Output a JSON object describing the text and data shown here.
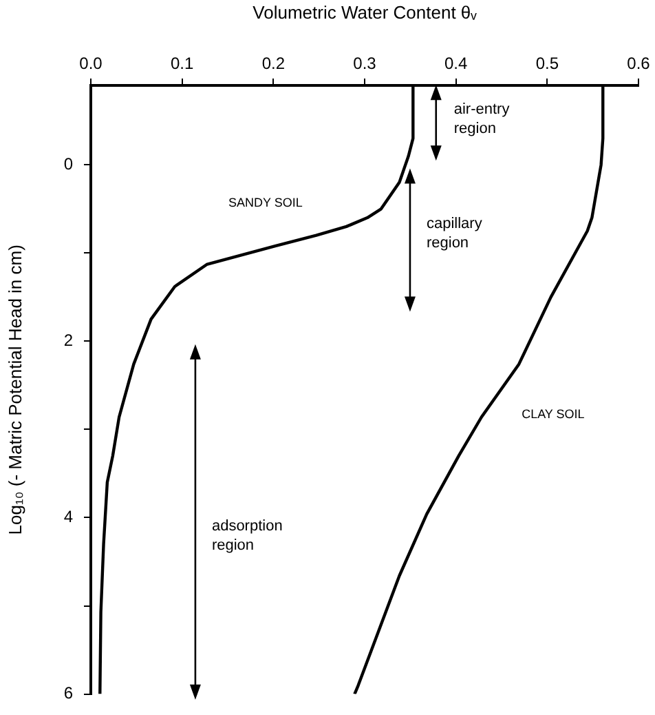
{
  "chart_data": {
    "type": "line",
    "xlabel": "Volumetric Water Content θᵥ",
    "ylabel": "Log₁₀ (- Matric Potential Head in cm)",
    "xlim": [
      0,
      0.6
    ],
    "xticks": [
      {
        "value": 0,
        "label": "0.0"
      },
      0.1,
      0.2,
      0.3,
      0.4,
      0.5,
      0.6
    ],
    "ylim": [
      6,
      -0.9
    ],
    "yticks": [
      0,
      {
        "value": 1,
        "label": null
      },
      2,
      {
        "value": 3,
        "label": null
      },
      4,
      {
        "value": 5,
        "label": null
      },
      6
    ],
    "grid": false,
    "legend": false,
    "marker": "none",
    "line_style": "solid",
    "series": [
      {
        "color": "#000000",
        "x": [
          0.353,
          0.353,
          0.348,
          0.343,
          0.338,
          0.328,
          0.318,
          0.303,
          0.28,
          0.247,
          0.202,
          0.127,
          0.092,
          0.066,
          0.047,
          0.031,
          0.024,
          0.018,
          0.014,
          0.011,
          0.01
        ],
        "values": [
          -0.9,
          -0.3,
          -0.1,
          0.05,
          0.2,
          0.35,
          0.5,
          0.6,
          0.7,
          0.8,
          0.92,
          1.13,
          1.38,
          1.75,
          2.26,
          2.86,
          3.3,
          3.6,
          4.3,
          5.07,
          6
        ]
      },
      {
        "color": "#000000",
        "x": [
          0.561,
          0.561,
          0.559,
          0.549,
          0.544,
          0.504,
          0.469,
          0.428,
          0.403,
          0.368,
          0.338,
          0.293,
          0.289
        ],
        "values": [
          -0.9,
          -0.3,
          0,
          0.6,
          0.75,
          1.5,
          2.26,
          2.86,
          3.3,
          3.96,
          4.66,
          5.9,
          6
        ]
      }
    ],
    "annotations": [
      "air-entry region",
      "capillary region",
      "adsorption region",
      "SANDY SOIL",
      "CLAY SOIL"
    ]
  }
}
